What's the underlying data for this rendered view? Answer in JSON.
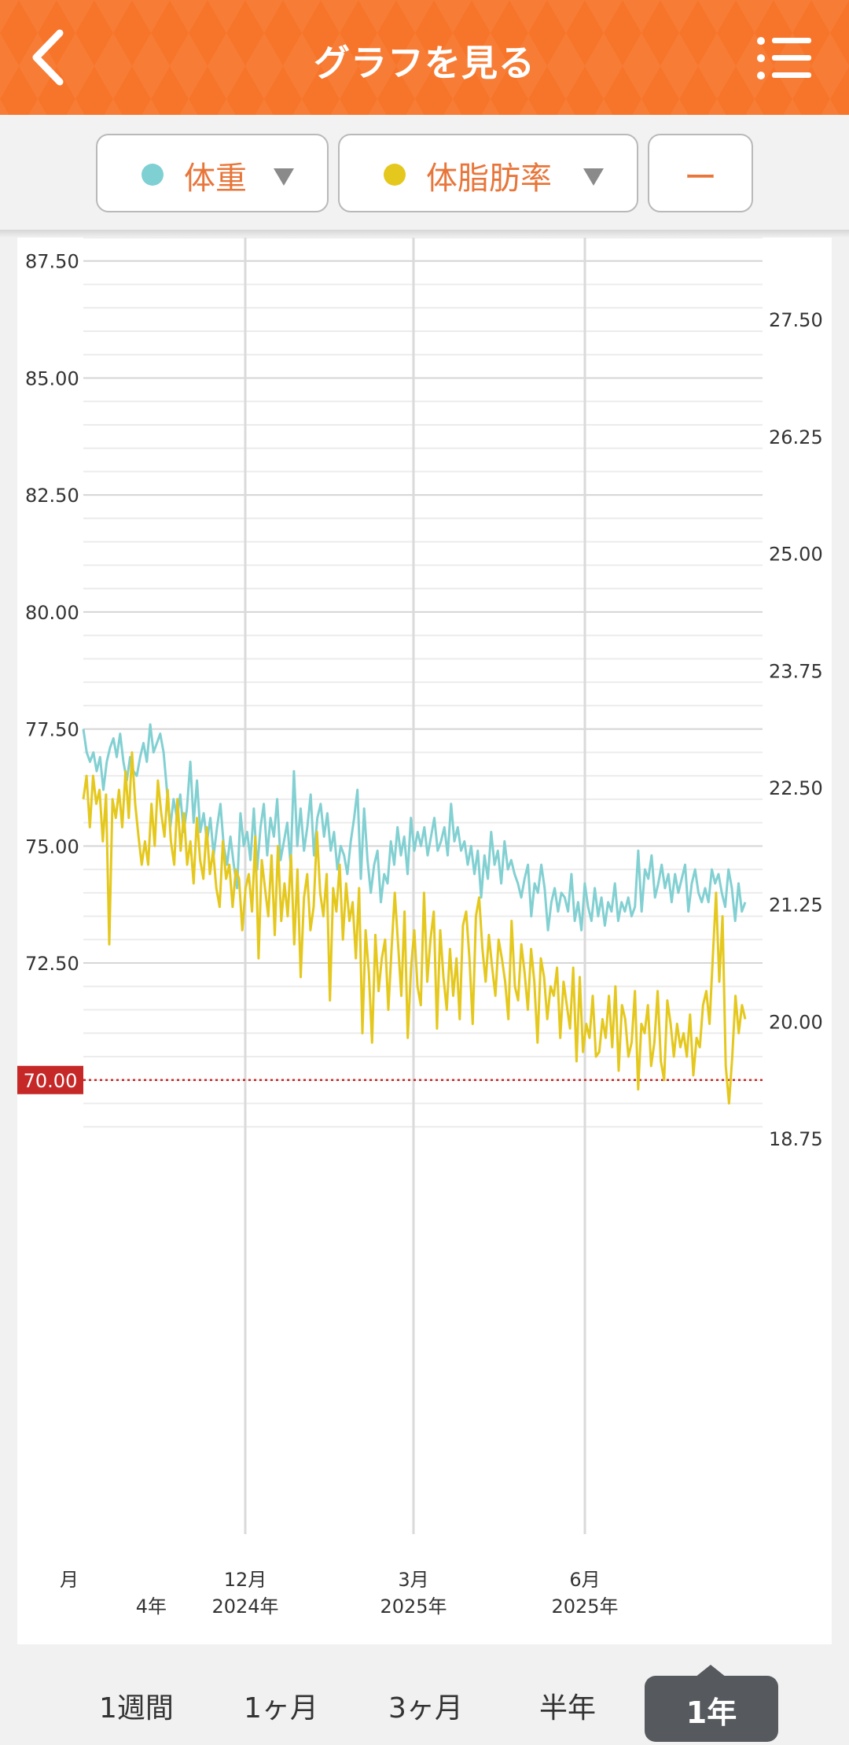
{
  "header": {
    "title": "グラフを見る",
    "back_icon": "chevron-left-icon",
    "menu_icon": "list-menu-icon"
  },
  "selectors": {
    "primary": {
      "label": "体重",
      "dot_color": "#7ed0d3"
    },
    "secondary": {
      "label": "体脂肪率",
      "dot_color": "#e5c81d"
    },
    "third": {
      "label": "ー"
    }
  },
  "periods": {
    "week": "1週間",
    "month": "1ヶ月",
    "three_months": "3ヶ月",
    "half_year": "半年",
    "year": "1年",
    "selected": "1年"
  },
  "chart_data": {
    "type": "line",
    "left_axis": {
      "ticks": [
        "87.50",
        "85.00",
        "82.50",
        "80.00",
        "77.50",
        "75.00",
        "72.50",
        "70.00"
      ],
      "range": [
        68.5,
        88.0
      ]
    },
    "right_axis": {
      "ticks": [
        "27.50",
        "26.25",
        "25.00",
        "23.75",
        "22.50",
        "21.25",
        "20.00",
        "18.75"
      ]
    },
    "x_ticks": [
      {
        "month": "月",
        "year": "4年"
      },
      {
        "month": "12月",
        "year": "2024年"
      },
      {
        "month": "3月",
        "year": "2025年"
      },
      {
        "month": "6月",
        "year": "2025年"
      }
    ],
    "goal_line": {
      "value": 70.0,
      "label": "70.00",
      "color": "#c62828"
    },
    "series": [
      {
        "color": "#82d0d2",
        "values": [
          77.5,
          77.0,
          76.8,
          77.0,
          76.6,
          76.9,
          76.2,
          76.8,
          77.1,
          77.3,
          76.9,
          77.4,
          76.8,
          76.4,
          76.9,
          76.6,
          76.5,
          76.9,
          77.2,
          76.8,
          77.6,
          77.0,
          77.2,
          77.4,
          77.0,
          76.2,
          75.4,
          76.0,
          75.6,
          76.1,
          75.3,
          75.8,
          76.8,
          75.5,
          76.4,
          75.3,
          75.7,
          75.1,
          75.6,
          74.8,
          75.4,
          75.9,
          75.0,
          74.6,
          75.2,
          74.6,
          74.1,
          75.7,
          75.0,
          75.3,
          74.7,
          75.8,
          74.5,
          75.4,
          75.9,
          74.8,
          75.6,
          75.2,
          76.0,
          74.7,
          75.1,
          75.5,
          74.6,
          76.6,
          75.0,
          75.8,
          74.9,
          75.4,
          76.1,
          74.8,
          75.6,
          75.9,
          75.2,
          75.7,
          74.9,
          75.3,
          74.5,
          75.0,
          74.8,
          74.4,
          75.1,
          75.6,
          76.2,
          74.3,
          75.8,
          74.7,
          74.0,
          74.6,
          74.9,
          73.8,
          74.4,
          74.2,
          75.1,
          74.6,
          75.4,
          74.8,
          75.2,
          74.4,
          75.6,
          74.9,
          75.3,
          75.0,
          75.4,
          74.8,
          75.2,
          75.6,
          74.9,
          75.1,
          75.4,
          74.8,
          75.9,
          75.1,
          75.4,
          74.9,
          75.1,
          74.6,
          75.0,
          74.4,
          74.9,
          73.9,
          74.8,
          74.3,
          75.3,
          74.6,
          74.9,
          74.2,
          75.1,
          74.5,
          74.7,
          74.4,
          74.2,
          73.9,
          74.3,
          74.6,
          73.5,
          74.2,
          74.0,
          74.6,
          74.1,
          73.2,
          73.8,
          74.1,
          73.6,
          74.0,
          73.9,
          73.6,
          74.4,
          73.4,
          73.8,
          73.2,
          74.2,
          73.7,
          73.4,
          74.1,
          73.5,
          73.9,
          73.3,
          73.8,
          73.6,
          74.2,
          73.4,
          73.8,
          73.6,
          73.9,
          73.5,
          73.7,
          74.9,
          73.6,
          74.5,
          74.3,
          74.8,
          73.9,
          74.2,
          74.6,
          74.1,
          74.4,
          73.8,
          74.4,
          74.0,
          74.3,
          74.6,
          73.6,
          74.2,
          74.5,
          74.0,
          73.8,
          74.1,
          73.8,
          74.5,
          74.2,
          74.4,
          74.0,
          73.7,
          74.5,
          74.1,
          73.4,
          74.2,
          73.6,
          73.8
        ]
      },
      {
        "color": "#e5c81d",
        "values": [
          76.0,
          76.5,
          75.4,
          76.5,
          75.9,
          76.2,
          75.1,
          76.1,
          72.9,
          76.0,
          75.6,
          76.2,
          75.4,
          76.6,
          75.6,
          77.0,
          75.9,
          75.2,
          74.6,
          75.1,
          74.6,
          75.9,
          75.0,
          76.4,
          75.7,
          75.2,
          76.2,
          75.1,
          74.6,
          76.0,
          74.9,
          75.7,
          74.6,
          75.1,
          74.2,
          75.6,
          74.7,
          74.3,
          75.4,
          74.4,
          74.9,
          74.1,
          73.7,
          75.1,
          74.3,
          74.6,
          73.7,
          74.5,
          74.3,
          73.2,
          74.1,
          74.4,
          73.6,
          75.2,
          72.6,
          74.7,
          74.1,
          73.5,
          74.8,
          73.1,
          75.0,
          73.4,
          74.2,
          73.5,
          74.8,
          72.9,
          74.5,
          72.2,
          73.9,
          74.4,
          73.2,
          73.7,
          75.3,
          74.0,
          73.5,
          74.4,
          71.7,
          74.1,
          73.6,
          74.6,
          73.0,
          74.2,
          73.4,
          73.8,
          72.6,
          74.1,
          71.0,
          73.2,
          72.3,
          70.8,
          73.1,
          71.9,
          72.6,
          73.0,
          71.5,
          72.8,
          74.0,
          72.9,
          71.8,
          73.6,
          70.9,
          72.4,
          73.2,
          72.0,
          71.6,
          74.0,
          72.1,
          73.0,
          73.6,
          71.1,
          73.2,
          72.2,
          71.5,
          72.8,
          71.8,
          72.6,
          71.3,
          73.3,
          73.6,
          72.6,
          71.2,
          73.5,
          73.9,
          72.8,
          72.1,
          73.1,
          72.4,
          71.8,
          73.0,
          72.6,
          72.1,
          71.3,
          73.4,
          72.0,
          71.7,
          72.9,
          72.3,
          71.5,
          72.8,
          72.1,
          70.8,
          72.6,
          72.2,
          71.3,
          72.0,
          71.8,
          72.4,
          70.9,
          72.1,
          71.6,
          71.1,
          72.4,
          70.4,
          72.2,
          70.6,
          71.2,
          70.9,
          71.8,
          70.5,
          70.6,
          71.3,
          70.9,
          71.8,
          70.7,
          72.0,
          70.2,
          71.6,
          71.3,
          70.5,
          70.8,
          71.9,
          69.8,
          71.2,
          71.0,
          71.6,
          70.3,
          70.8,
          71.9,
          70.4,
          70.0,
          71.7,
          71.2,
          70.5,
          71.2,
          70.7,
          71.0,
          70.5,
          71.4,
          70.1,
          70.9,
          70.7,
          71.6,
          71.9,
          71.2,
          72.6,
          74.0,
          72.1,
          73.5,
          70.3,
          69.5,
          70.5,
          71.8,
          71.0,
          71.6,
          71.3
        ]
      }
    ]
  }
}
